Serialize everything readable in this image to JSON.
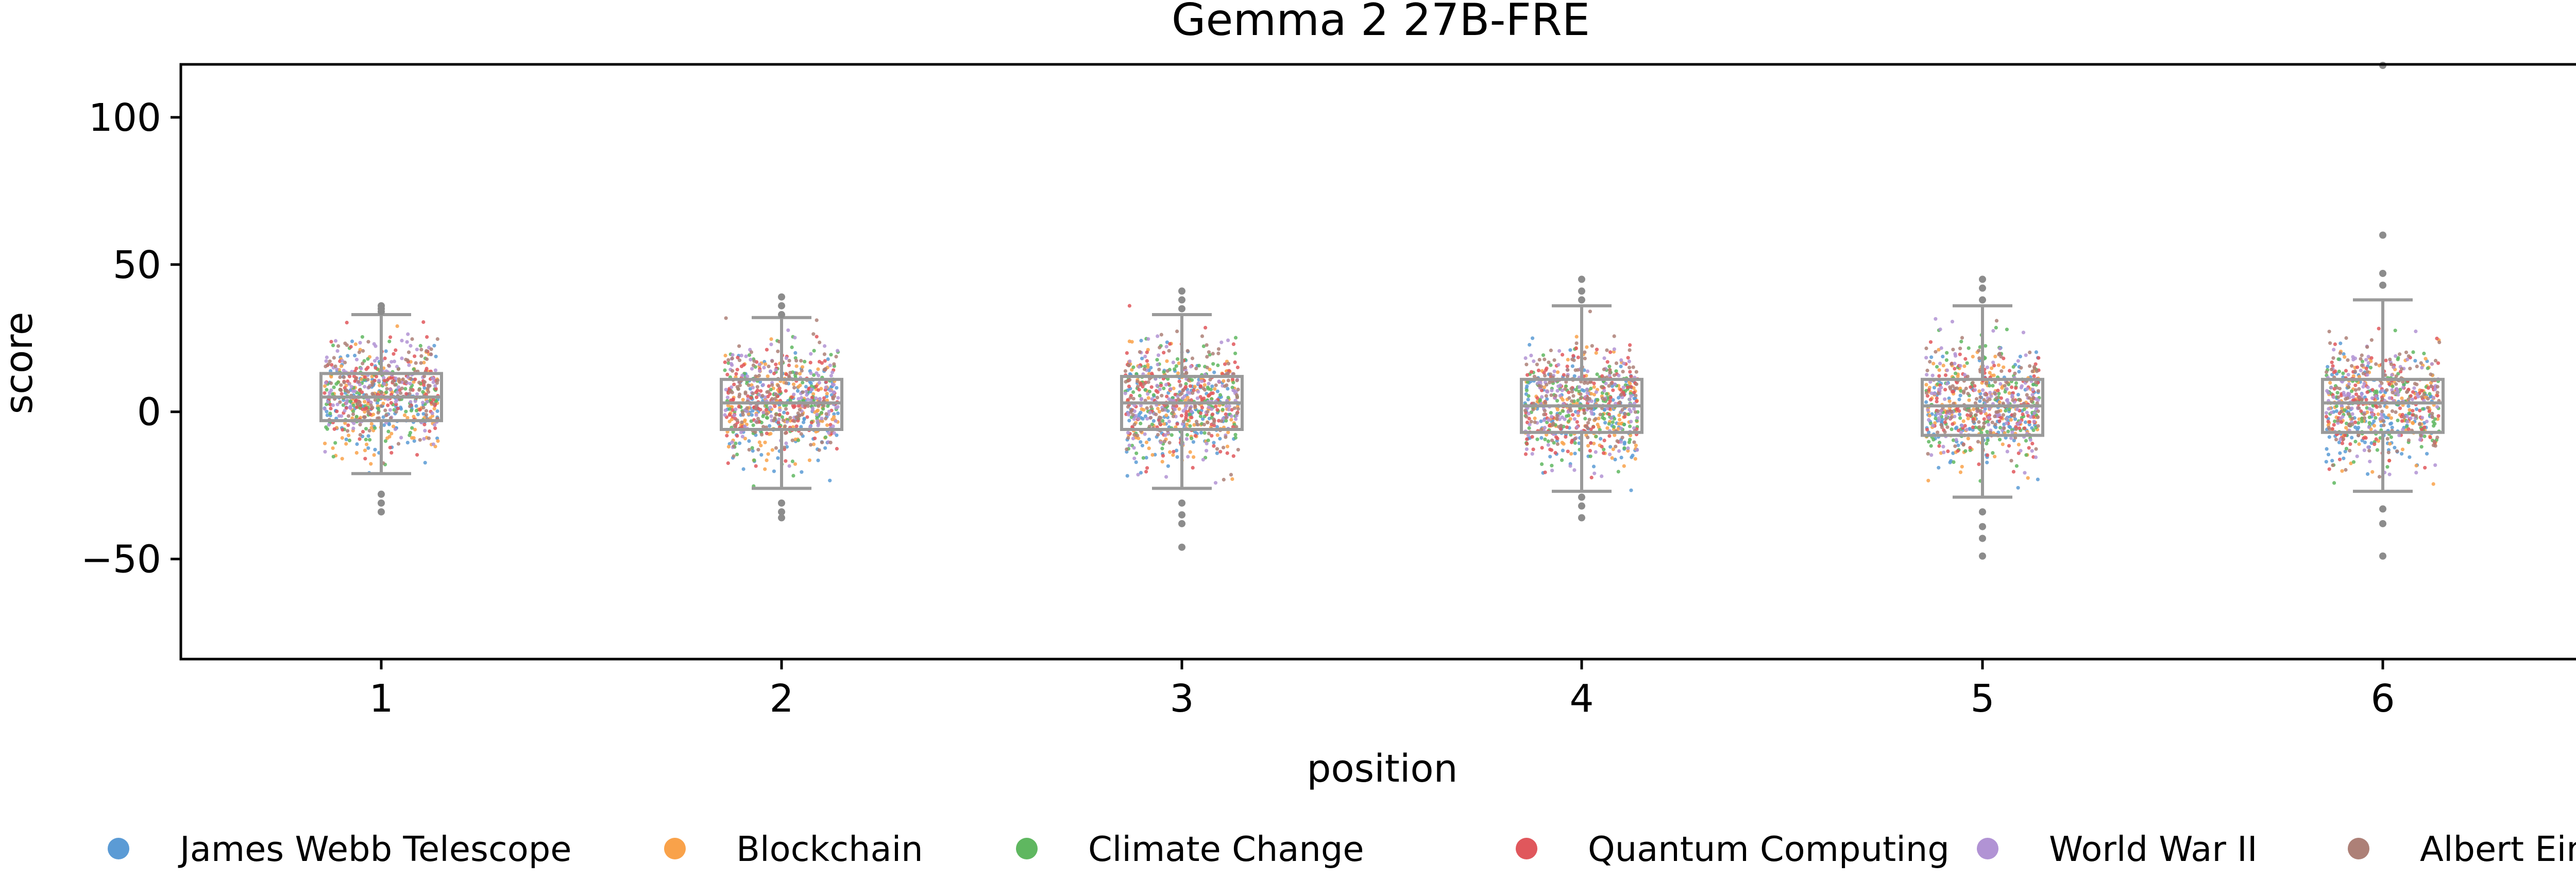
{
  "chart_data": {
    "type": "scatter",
    "title": "Gemma 2 27B-FRE",
    "xlabel": "position",
    "ylabel": "score",
    "categories": [
      "1",
      "2",
      "3",
      "4",
      "5",
      "6"
    ],
    "ylim": [
      -84,
      118
    ],
    "yticks": [
      100,
      50,
      0,
      -50
    ],
    "ytick_labels": [
      "100",
      "50",
      "0",
      "−50"
    ],
    "grid": false,
    "legend_position": "bottom",
    "series": [
      {
        "name": "James Webb Telescope",
        "color": "#5b9bd5"
      },
      {
        "name": "Blockchain",
        "color": "#f9a24a"
      },
      {
        "name": "Climate Change",
        "color": "#5fb760"
      },
      {
        "name": "Quantum Computing",
        "color": "#e0575c"
      },
      {
        "name": "World War II",
        "color": "#b193d4"
      },
      {
        "name": "Albert Einstein",
        "color": "#ad8077"
      }
    ],
    "boxplots": [
      {
        "position": "1",
        "q1": -3,
        "median": 5,
        "q3": 13,
        "whisker_low": -21,
        "whisker_high": 33,
        "outliers": [
          -34,
          -31,
          -28,
          34,
          35,
          36
        ]
      },
      {
        "position": "2",
        "q1": -6,
        "median": 3,
        "q3": 11,
        "whisker_low": -26,
        "whisker_high": 32,
        "outliers": [
          -36,
          -34,
          -31,
          33,
          36,
          39
        ]
      },
      {
        "position": "3",
        "q1": -6,
        "median": 3,
        "q3": 12,
        "whisker_low": -26,
        "whisker_high": 33,
        "outliers": [
          -46,
          -38,
          -35,
          -31,
          35,
          38,
          41
        ]
      },
      {
        "position": "4",
        "q1": -7,
        "median": 2,
        "q3": 11,
        "whisker_low": -27,
        "whisker_high": 36,
        "outliers": [
          -36,
          -32,
          -29,
          38,
          41,
          45
        ]
      },
      {
        "position": "5",
        "q1": -8,
        "median": 2,
        "q3": 11,
        "whisker_low": -29,
        "whisker_high": 36,
        "outliers": [
          -49,
          -43,
          -39,
          -34,
          38,
          42,
          45
        ]
      },
      {
        "position": "6",
        "q1": -7,
        "median": 3,
        "q3": 11,
        "whisker_low": -27,
        "whisker_high": 38,
        "outliers": [
          -49,
          -38,
          -33,
          43,
          47,
          60,
          118
        ]
      }
    ]
  }
}
